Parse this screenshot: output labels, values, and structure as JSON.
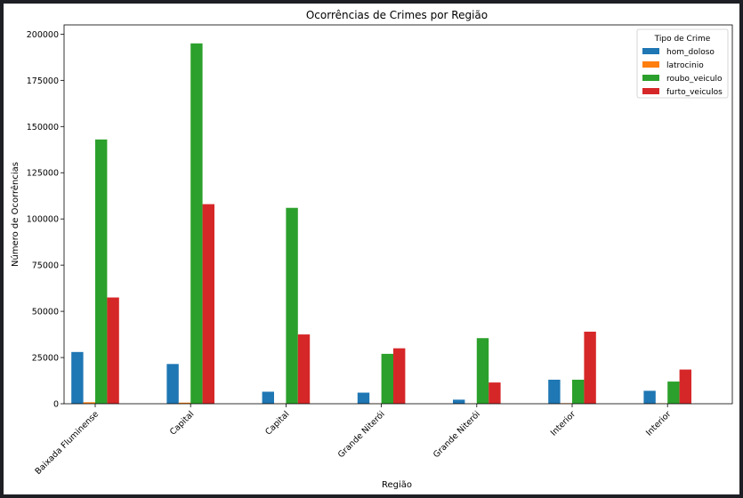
{
  "chart_data": {
    "type": "bar",
    "title": "Ocorrências de Crimes por Região",
    "xlabel": "Região",
    "ylabel": "Número de Ocorrências",
    "categories": [
      "Baixada Fluminense",
      "Capital",
      "Capital",
      "Grande Niterói",
      "Grande Niterói",
      "Interior",
      "Interior"
    ],
    "series": [
      {
        "name": "hom_doloso",
        "color": "#1f77b4",
        "values": [
          28000,
          21500,
          6500,
          6000,
          2200,
          13000,
          7000
        ]
      },
      {
        "name": "latrocinio",
        "color": "#ff7f0e",
        "values": [
          800,
          600,
          200,
          150,
          100,
          300,
          200
        ]
      },
      {
        "name": "roubo_veiculo",
        "color": "#2ca02c",
        "values": [
          143000,
          195000,
          106000,
          27000,
          35500,
          13000,
          12000
        ]
      },
      {
        "name": "furto_veiculos",
        "color": "#d62728",
        "values": [
          57500,
          108000,
          37500,
          30000,
          11500,
          39000,
          18500
        ]
      }
    ],
    "yticks": [
      0,
      25000,
      50000,
      75000,
      100000,
      125000,
      150000,
      175000,
      200000
    ],
    "ylim": [
      0,
      205000
    ],
    "legend": {
      "title": "Tipo de Crime",
      "placement": "top-right"
    },
    "grid": false
  }
}
